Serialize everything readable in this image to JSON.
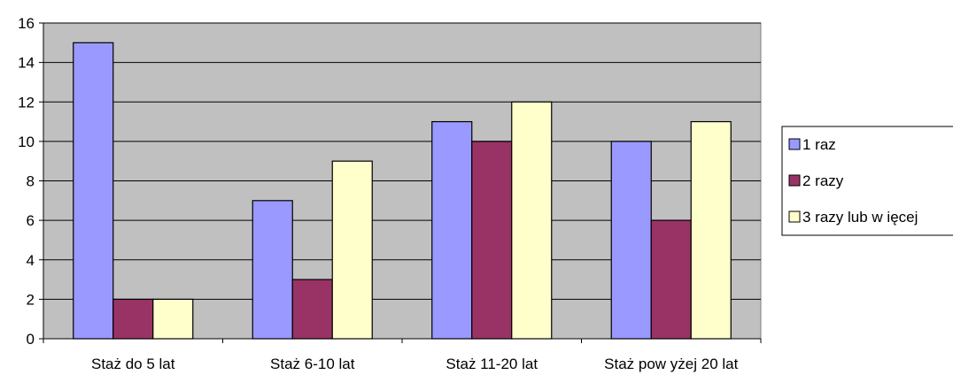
{
  "chart_data": {
    "type": "bar",
    "title": "",
    "xlabel": "",
    "ylabel": "",
    "categories": [
      "Staż do 5 lat",
      "Staż 6-10 lat",
      "Staż 11-20 lat",
      "Staż pow yżej 20 lat"
    ],
    "series": [
      {
        "name": "1 raz",
        "values": [
          15,
          7,
          11,
          10
        ],
        "color": "#9999FF"
      },
      {
        "name": "2 razy",
        "values": [
          2,
          3,
          10,
          6
        ],
        "color": "#993366"
      },
      {
        "name": "3 razy lub w ięcej",
        "values": [
          2,
          9,
          12,
          11
        ],
        "color": "#FFFFCC"
      }
    ],
    "ylim": [
      0,
      16
    ],
    "yticks": [
      0,
      2,
      4,
      6,
      8,
      10,
      12,
      14,
      16
    ],
    "grid": true,
    "plot_background": "#C0C0C0",
    "legend_position": "right"
  }
}
